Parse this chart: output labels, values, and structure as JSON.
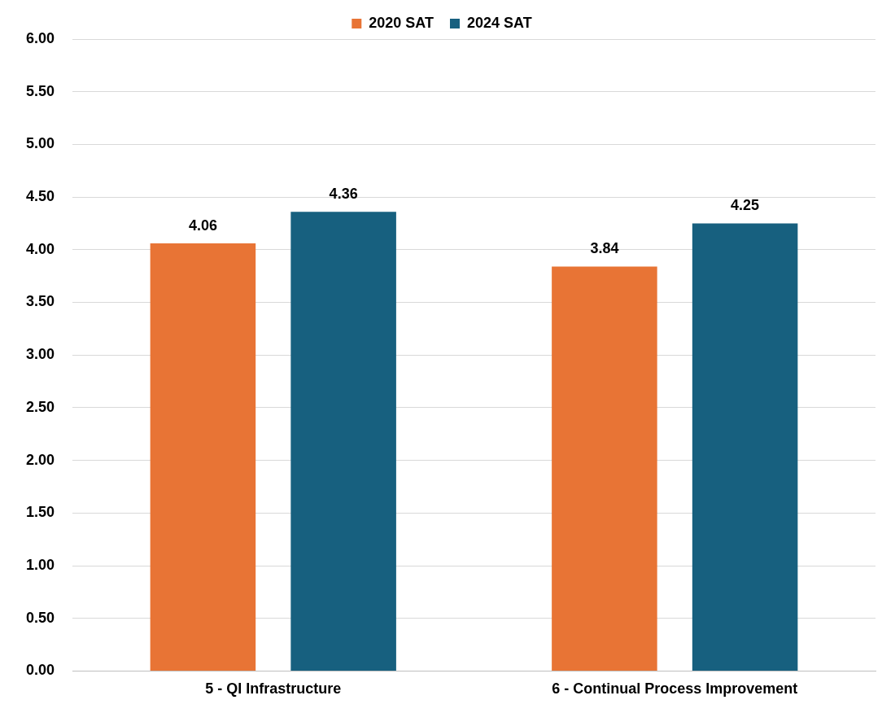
{
  "chart_data": {
    "type": "bar",
    "categories": [
      "5 - QI Infrastructure",
      "6 - Continual Process Improvement"
    ],
    "series": [
      {
        "name": "2020 SAT",
        "color": "#e87435",
        "values": [
          4.06,
          3.84
        ]
      },
      {
        "name": "2024 SAT",
        "color": "#17607f",
        "values": [
          4.36,
          4.25
        ]
      }
    ],
    "ylim": [
      0,
      6
    ],
    "yticks": [
      {
        "value": 0,
        "label": "0.00"
      },
      {
        "value": 0.5,
        "label": "0.50"
      },
      {
        "value": 1,
        "label": "1.00"
      },
      {
        "value": 1.5,
        "label": "1.50"
      },
      {
        "value": 2,
        "label": "2.00"
      },
      {
        "value": 2.5,
        "label": "2.50"
      },
      {
        "value": 3,
        "label": "3.00"
      },
      {
        "value": 3.5,
        "label": "3.50"
      },
      {
        "value": 4,
        "label": "4.00"
      },
      {
        "value": 4.5,
        "label": "4.50"
      },
      {
        "value": 5,
        "label": "5.00"
      },
      {
        "value": 5.5,
        "label": "5.50"
      },
      {
        "value": 6,
        "label": "6.00"
      }
    ],
    "grid": "y",
    "legend": "top",
    "data_labels": true
  }
}
